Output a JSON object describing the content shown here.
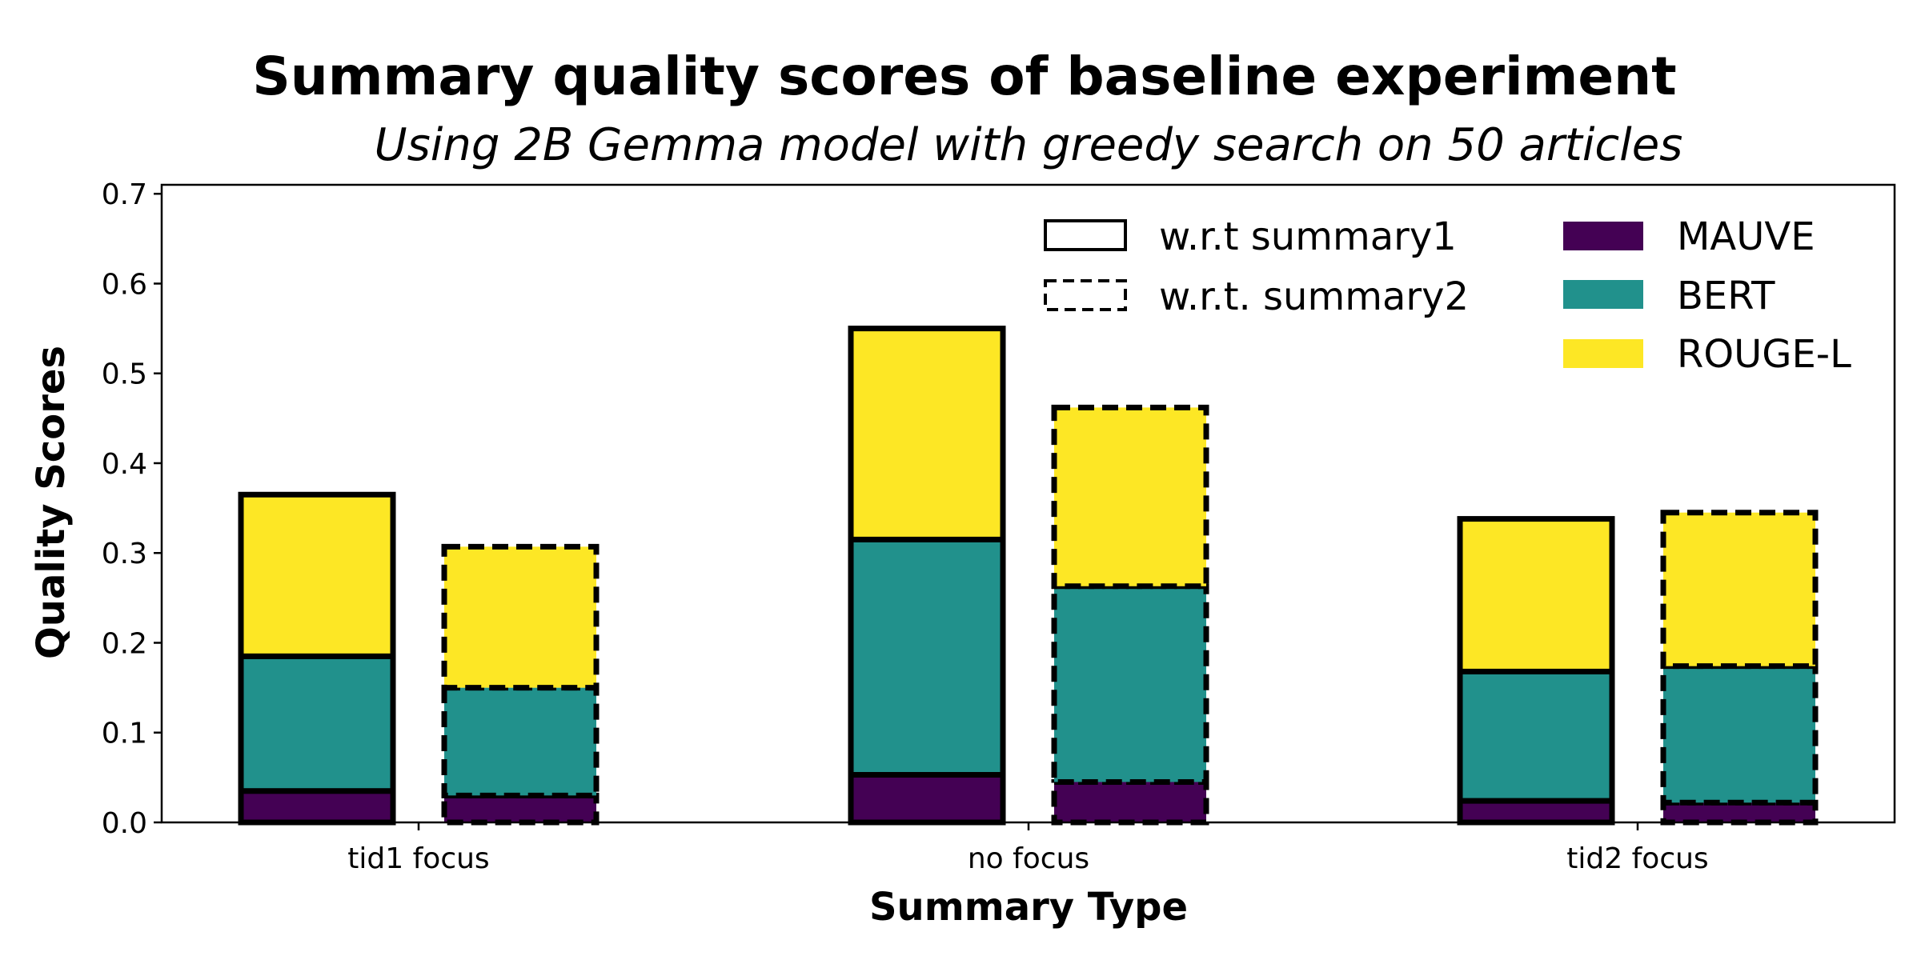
{
  "chart_data": {
    "type": "bar",
    "stacked": true,
    "title": "Summary quality scores of baseline experiment",
    "subtitle": "Using 2B Gemma model with greedy search on 50 articles",
    "xlabel": "Summary Type",
    "ylabel": "Quality Scores",
    "ylim": [
      0,
      0.71
    ],
    "yticks": [
      "0.0",
      "0.1",
      "0.2",
      "0.3",
      "0.4",
      "0.5",
      "0.6",
      "0.7"
    ],
    "categories": [
      "tid1 focus",
      "no focus",
      "tid2 focus"
    ],
    "groups": [
      {
        "name": "w.r.t summary1",
        "line_style": "solid"
      },
      {
        "name": "w.r.t. summary2",
        "line_style": "dashed"
      }
    ],
    "series": [
      {
        "name": "MAUVE",
        "color": "#440154",
        "values": [
          [
            0.035,
            0.03
          ],
          [
            0.053,
            0.045
          ],
          [
            0.024,
            0.022
          ]
        ]
      },
      {
        "name": "BERT",
        "color": "#21918c",
        "values": [
          [
            0.15,
            0.12
          ],
          [
            0.262,
            0.218
          ],
          [
            0.144,
            0.152
          ]
        ]
      },
      {
        "name": "ROUGE-L",
        "color": "#fde725",
        "values": [
          [
            0.18,
            0.157
          ],
          [
            0.235,
            0.199
          ],
          [
            0.17,
            0.171
          ]
        ]
      }
    ],
    "legend_position": "top-right",
    "grid": false
  }
}
